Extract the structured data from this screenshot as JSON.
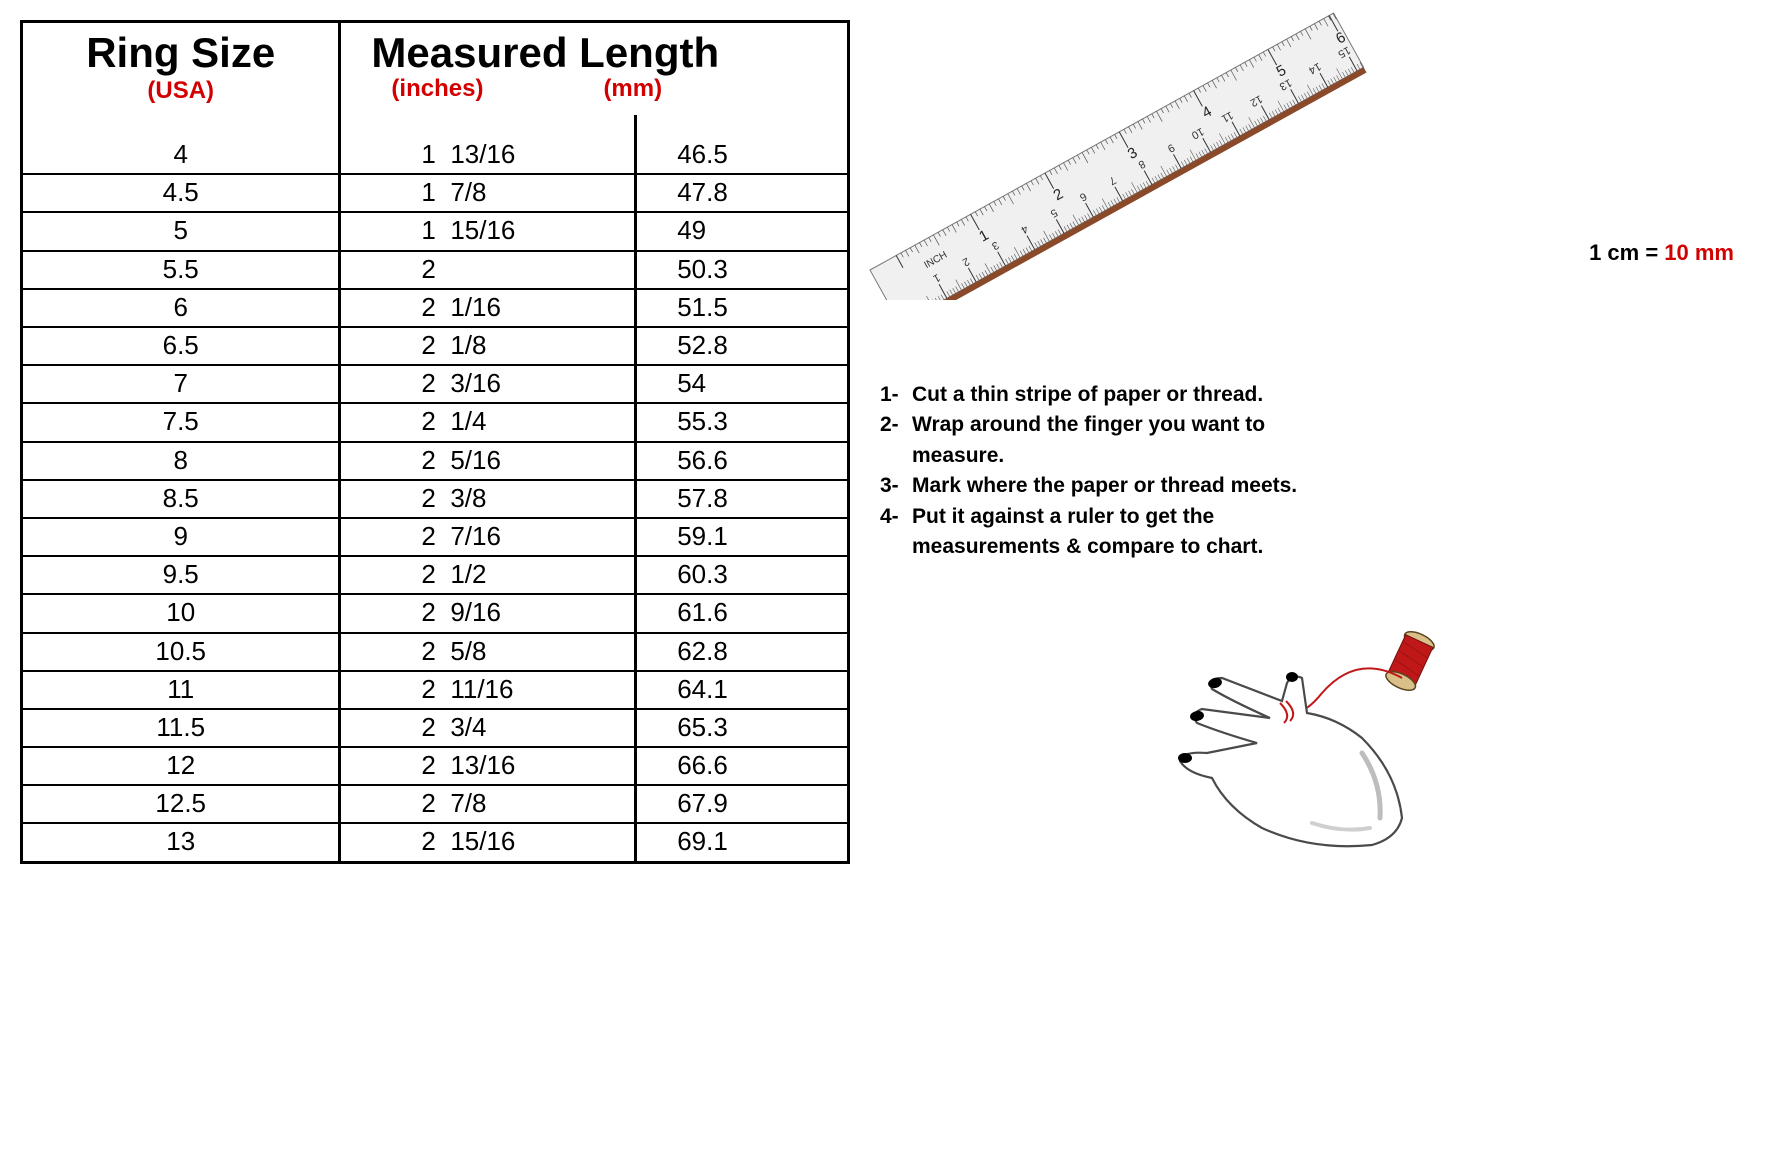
{
  "table": {
    "header": {
      "col1_title": "Ring Size",
      "col1_sub": "(USA)",
      "col2_title": "Measured Length",
      "col2_unit_inches": "(inches)",
      "col2_unit_mm": "(mm)"
    },
    "rows": [
      {
        "size": "4",
        "inches": "1  13/16",
        "mm": "46.5"
      },
      {
        "size": "4.5",
        "inches": "1  7/8",
        "mm": "47.8"
      },
      {
        "size": "5",
        "inches": "1  15/16",
        "mm": "49"
      },
      {
        "size": "5.5",
        "inches": "2",
        "mm": "50.3"
      },
      {
        "size": "6",
        "inches": "2  1/16",
        "mm": "51.5"
      },
      {
        "size": "6.5",
        "inches": "2  1/8",
        "mm": "52.8"
      },
      {
        "size": "7",
        "inches": "2  3/16",
        "mm": "54"
      },
      {
        "size": "7.5",
        "inches": "2  1/4",
        "mm": "55.3"
      },
      {
        "size": "8",
        "inches": "2  5/16",
        "mm": "56.6"
      },
      {
        "size": "8.5",
        "inches": "2  3/8",
        "mm": "57.8"
      },
      {
        "size": "9",
        "inches": "2  7/16",
        "mm": "59.1"
      },
      {
        "size": "9.5",
        "inches": "2  1/2",
        "mm": "60.3"
      },
      {
        "size": "10",
        "inches": "2  9/16",
        "mm": "61.6"
      },
      {
        "size": "10.5",
        "inches": "2  5/8",
        "mm": "62.8"
      },
      {
        "size": "11",
        "inches": "2  11/16",
        "mm": "64.1"
      },
      {
        "size": "11.5",
        "inches": "2  3/4",
        "mm": "65.3"
      },
      {
        "size": "12",
        "inches": "2  13/16",
        "mm": "66.6"
      },
      {
        "size": "12.5",
        "inches": "2  7/8",
        "mm": "67.9"
      },
      {
        "size": "13",
        "inches": "2  15/16",
        "mm": "69.1"
      }
    ],
    "border_color": "#000000",
    "header_subtitle_color": "#d20000",
    "body_font_size": 26
  },
  "conversion_note": {
    "prefix": "1 cm = ",
    "value": "10 mm",
    "value_color": "#d20000"
  },
  "instructions": {
    "steps": [
      {
        "num": "1-",
        "text": "Cut a thin stripe of paper or thread."
      },
      {
        "num": "2-",
        "text": "Wrap around the finger you want to",
        "cont": "measure."
      },
      {
        "num": "3-",
        "text": "Mark where the paper or thread meets."
      },
      {
        "num": "4-",
        "text": "Put it against a ruler to get the",
        "cont": "measurements & compare to chart."
      }
    ],
    "font_size": 21,
    "font_weight": 700
  },
  "ruler": {
    "inch_label": "INCH",
    "inch_marks": [
      1,
      2,
      3,
      4,
      5,
      6
    ],
    "cm_marks": [
      1,
      2,
      3,
      4,
      5,
      6,
      7,
      8,
      9,
      10,
      11,
      12,
      13,
      14,
      15
    ],
    "body_color": "#e8e8e8",
    "edge_color": "#888888"
  },
  "hand_illustration": {
    "thread_color": "#c01818",
    "spool_color": "#c01818",
    "nail_color": "#000000",
    "outline_color": "#4a4a4a"
  }
}
